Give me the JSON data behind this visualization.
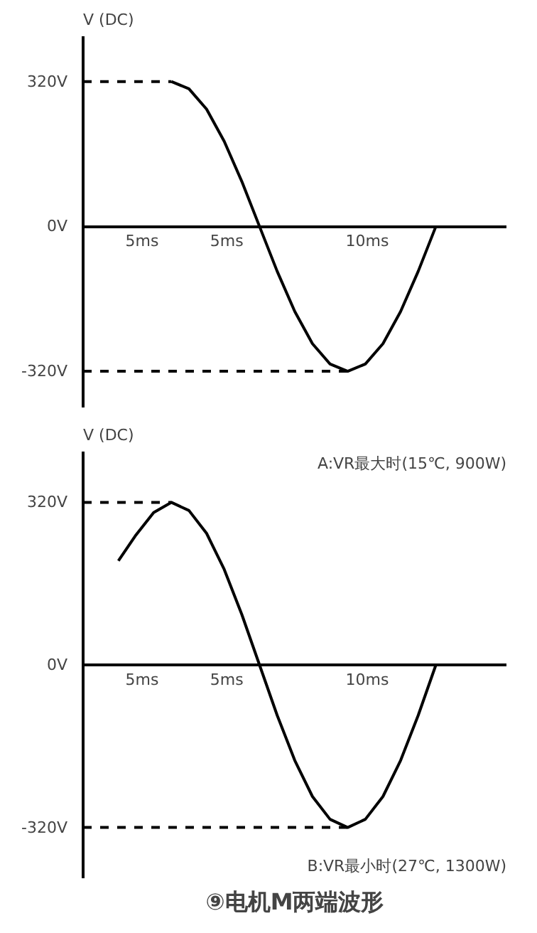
{
  "chart_data": [
    {
      "type": "line",
      "ylabel": "V (DC)",
      "ylim": [
        -400,
        420
      ],
      "categories": [
        null,
        null,
        null,
        null,
        null,
        null,
        null,
        null,
        null,
        null,
        null,
        null,
        null,
        null,
        null,
        null,
        null,
        null,
        null,
        null,
        null,
        null,
        null,
        null,
        null
      ],
      "yticks": [
        {
          "value": -320,
          "label": "-320V"
        },
        {
          "value": 0,
          "label": "0V"
        },
        {
          "value": 320,
          "label": "320V"
        }
      ],
      "series": [
        {
          "color": "#000000",
          "line_style": "dashed",
          "values": [
            320,
            320,
            320,
            320,
            320,
            320,
            null,
            null,
            null,
            null,
            null,
            null,
            null,
            null,
            null,
            null,
            null,
            null,
            null,
            null,
            null,
            null,
            null,
            null,
            null
          ]
        },
        {
          "color": "#000000",
          "line_style": "dashed",
          "values": [
            -320,
            -320,
            -320,
            -320,
            -320,
            -320,
            -320,
            -320,
            -320,
            -320,
            -320,
            -320,
            -320,
            -320,
            -320,
            -320,
            null,
            null,
            null,
            null,
            null,
            null,
            null,
            null,
            null
          ]
        },
        {
          "color": "#000000",
          "line_style": "solid",
          "values": [
            null,
            null,
            null,
            null,
            null,
            320,
            304,
            259,
            188,
            99,
            0,
            -99,
            -188,
            -259,
            -304,
            -320,
            -304,
            -259,
            -188,
            -99,
            0,
            null,
            null,
            null,
            null
          ]
        }
      ],
      "annotations": [
        "5ms",
        "5ms",
        "10ms"
      ]
    },
    {
      "type": "line",
      "title": "⑨电机M两端波形",
      "ylabel": "V (DC)",
      "ylim": [
        -420,
        420
      ],
      "categories": [
        null,
        null,
        null,
        null,
        null,
        null,
        null,
        null,
        null,
        null,
        null,
        null,
        null,
        null,
        null,
        null,
        null,
        null,
        null,
        null,
        null,
        null,
        null,
        null,
        null
      ],
      "yticks": [
        {
          "value": -320,
          "label": "-320V"
        },
        {
          "value": 0,
          "label": "0V"
        },
        {
          "value": 320,
          "label": "320V"
        }
      ],
      "series": [
        {
          "color": "#000000",
          "line_style": "dashed",
          "values": [
            320,
            320,
            320,
            320,
            320,
            320,
            null,
            null,
            null,
            null,
            null,
            null,
            null,
            null,
            null,
            null,
            null,
            null,
            null,
            null,
            null,
            null,
            null,
            null,
            null
          ]
        },
        {
          "color": "#000000",
          "line_style": "dashed",
          "values": [
            -320,
            -320,
            -320,
            -320,
            -320,
            -320,
            -320,
            -320,
            -320,
            -320,
            -320,
            -320,
            -320,
            -320,
            -320,
            -320,
            null,
            null,
            null,
            null,
            null,
            null,
            null,
            null,
            null
          ]
        },
        {
          "color": "#000000",
          "line_style": "solid",
          "values": [
            null,
            null,
            205,
            256,
            300,
            320,
            304,
            259,
            188,
            99,
            0,
            -99,
            -188,
            -259,
            -304,
            -320,
            -304,
            -259,
            -188,
            -99,
            0,
            null,
            null,
            null,
            null
          ]
        }
      ],
      "annotations": [
        "5ms",
        "5ms",
        "10ms",
        "A:VR最大时(15℃, 900W)",
        "B:VR最小时(27℃, 1300W)"
      ]
    }
  ]
}
